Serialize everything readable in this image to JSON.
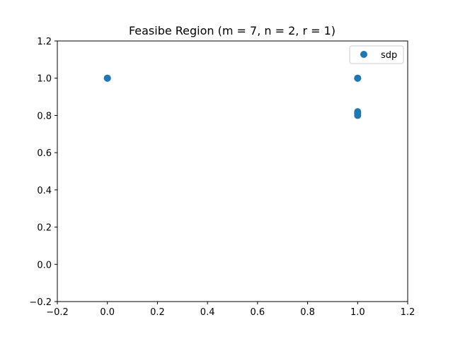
{
  "chart_data": {
    "type": "scatter",
    "title": "Feasibe Region (m = 7, n = 2, r = 1)",
    "xlabel": "",
    "ylabel": "",
    "xlim": [
      -0.2,
      1.2
    ],
    "ylim": [
      -0.2,
      1.2
    ],
    "xticks": [
      -0.2,
      0.0,
      0.2,
      0.4,
      0.6,
      0.8,
      1.0,
      1.2
    ],
    "yticks": [
      -0.2,
      0.0,
      0.2,
      0.4,
      0.6,
      0.8,
      1.0,
      1.2
    ],
    "xtick_labels": [
      "−0.2",
      "0.0",
      "0.2",
      "0.4",
      "0.6",
      "0.8",
      "1.0",
      "1.2"
    ],
    "ytick_labels": [
      "−0.2",
      "0.0",
      "0.2",
      "0.4",
      "0.6",
      "0.8",
      "1.0",
      "1.2"
    ],
    "grid": false,
    "legend_position": "top-right",
    "series": [
      {
        "name": "sdp",
        "color": "#1f77b4",
        "x": [
          0.0,
          0.0,
          1.0,
          1.0,
          1.0,
          1.0,
          1.0
        ],
        "y": [
          1.0,
          1.0,
          1.0,
          1.0,
          0.82,
          0.81,
          0.8
        ]
      }
    ]
  }
}
